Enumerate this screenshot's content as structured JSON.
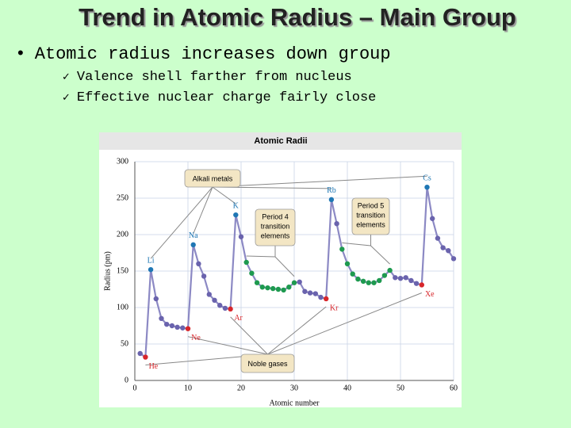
{
  "slide": {
    "title": "Trend in Atomic Radius – Main Group",
    "bullet": "Atomic radius increases down group",
    "sub_bullets": [
      "Valence shell farther from nucleus",
      "Effective nuclear charge fairly close"
    ]
  },
  "chart_data": {
    "type": "line",
    "title": "Atomic Radii",
    "x_label": "Atomic number",
    "y_label": "Radius (pm)",
    "x": [
      1,
      2,
      3,
      4,
      5,
      6,
      7,
      8,
      9,
      10,
      11,
      12,
      13,
      14,
      15,
      16,
      17,
      18,
      19,
      20,
      21,
      22,
      23,
      24,
      25,
      26,
      27,
      28,
      29,
      30,
      31,
      32,
      33,
      34,
      35,
      36,
      37,
      38,
      39,
      40,
      41,
      42,
      43,
      44,
      45,
      46,
      47,
      48,
      49,
      50,
      51,
      52,
      53,
      54,
      55,
      56,
      57,
      58,
      59,
      60
    ],
    "values": [
      37,
      32,
      152,
      112,
      85,
      77,
      75,
      73,
      72,
      71,
      186,
      160,
      143,
      118,
      110,
      103,
      99,
      98,
      227,
      197,
      162,
      147,
      134,
      128,
      127,
      126,
      125,
      124,
      128,
      134,
      135,
      122,
      120,
      119,
      114,
      112,
      248,
      215,
      180,
      160,
      146,
      139,
      136,
      134,
      134,
      137,
      144,
      151,
      141,
      140,
      141,
      137,
      133,
      131,
      265,
      222,
      195,
      182,
      178,
      167
    ],
    "color": "#8c89c4",
    "marker_color": "#6a63ad",
    "groups": [
      {
        "name": "Alkali metals",
        "color": "#1f77b4",
        "x": [
          3,
          11,
          19,
          37,
          55
        ]
      },
      {
        "name": "Noble gases",
        "color": "#d7262b",
        "x": [
          2,
          10,
          18,
          36,
          54
        ]
      },
      {
        "name_lines": [
          "Period 4",
          "transition",
          "elements"
        ],
        "color": "#1e9a4f",
        "x": [
          21,
          22,
          23,
          24,
          25,
          26,
          27,
          28,
          29,
          30
        ]
      },
      {
        "name_lines": [
          "Period 5",
          "transition",
          "elements"
        ],
        "color": "#1e9a4f",
        "x": [
          39,
          40,
          41,
          42,
          43,
          44,
          45,
          46,
          47,
          48
        ]
      }
    ],
    "point_labels": [
      {
        "x": 3,
        "label": "Li"
      },
      {
        "x": 11,
        "label": "Na"
      },
      {
        "x": 19,
        "label": "K"
      },
      {
        "x": 37,
        "label": "Rb"
      },
      {
        "x": 55,
        "label": "Cs"
      },
      {
        "x": 2,
        "label": "He"
      },
      {
        "x": 10,
        "label": "Ne"
      },
      {
        "x": 18,
        "label": "Ar"
      },
      {
        "x": 36,
        "label": "Kr"
      },
      {
        "x": 54,
        "label": "Xe"
      }
    ],
    "xlim": [
      0,
      60
    ],
    "xticks": [
      0,
      10,
      20,
      30,
      40,
      50,
      60
    ],
    "ylim": [
      0,
      300
    ],
    "yticks": [
      0,
      50,
      100,
      150,
      200,
      250,
      300
    ],
    "grid": true
  }
}
